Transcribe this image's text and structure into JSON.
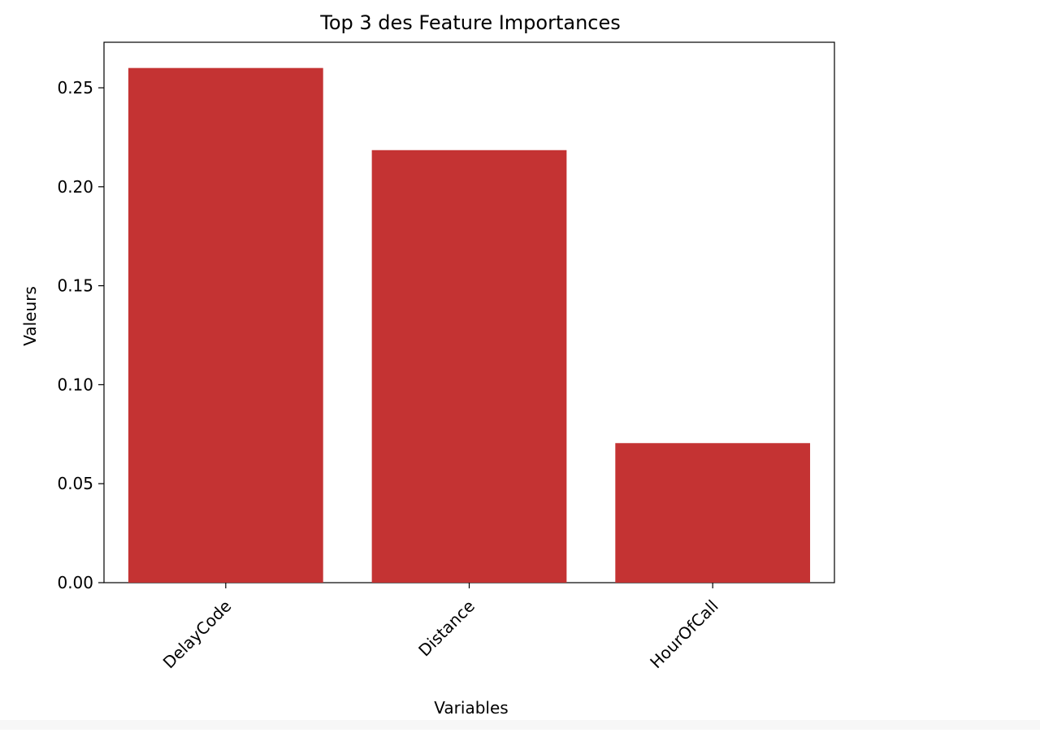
{
  "chart_data": {
    "type": "bar",
    "title": "Top 3 des Feature Importances",
    "xlabel": "Variables",
    "ylabel": "Valeurs",
    "categories": [
      "DelayCode",
      "Distance",
      "HourOfCall"
    ],
    "values": [
      0.26,
      0.2185,
      0.0705
    ],
    "ylim": [
      0,
      0.273
    ],
    "yticks": [
      "0.00",
      "0.05",
      "0.10",
      "0.15",
      "0.20",
      "0.25"
    ],
    "ytick_values": [
      0,
      0.05,
      0.1,
      0.15,
      0.2,
      0.25
    ],
    "bar_color": "#c43333",
    "grid": false,
    "legend": "none"
  }
}
